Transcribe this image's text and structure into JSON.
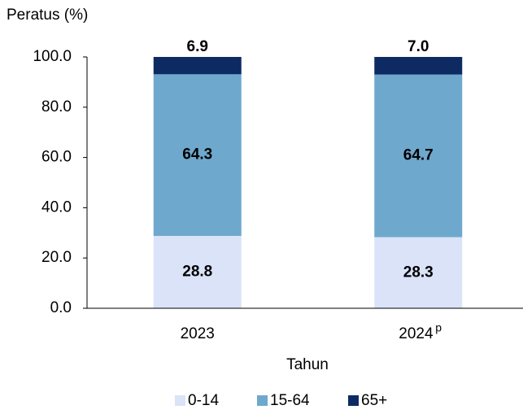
{
  "chart_data": {
    "type": "stacked_bar",
    "y_axis_label": "Peratus (%)",
    "x_axis_label": "Tahun",
    "categories": [
      "2023",
      "2024"
    ],
    "annotations": [
      {
        "category": "2024",
        "text": "p"
      }
    ],
    "series": [
      {
        "name": "0-14",
        "color": "#dae3f8",
        "values": [
          28.8,
          28.3
        ],
        "value_labels": [
          "28.8",
          "28.3"
        ]
      },
      {
        "name": "15-64",
        "color": "#6fa8cd",
        "values": [
          64.3,
          64.7
        ],
        "value_labels": [
          "64.3",
          "64.7"
        ]
      },
      {
        "name": "65+",
        "color": "#0e2a63",
        "values": [
          6.9,
          7.0
        ],
        "value_labels": [
          "6.9",
          "7.0"
        ]
      }
    ],
    "ylim": [
      0,
      100
    ],
    "yticks": [
      {
        "value": 0,
        "label": "0.0"
      },
      {
        "value": 20,
        "label": "20.0"
      },
      {
        "value": 40,
        "label": "40.0"
      },
      {
        "value": 60,
        "label": "60.0"
      },
      {
        "value": 80,
        "label": "80.0"
      },
      {
        "value": 100,
        "label": "100.0"
      }
    ],
    "legend": "bottom"
  }
}
